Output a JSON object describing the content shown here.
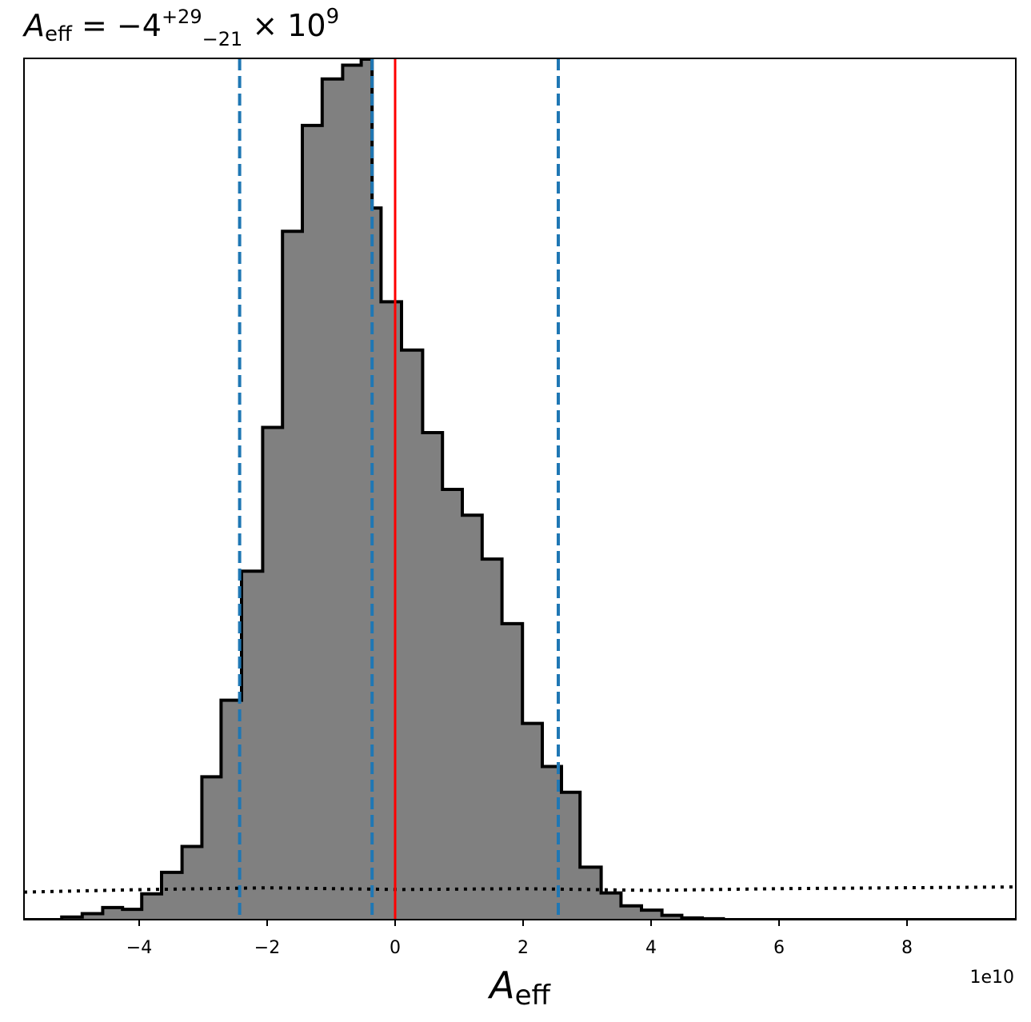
{
  "chart_data": {
    "type": "histogram",
    "title": {
      "symbol": "A",
      "symbol_sub": "eff",
      "text": " = −4",
      "sup": "+29",
      "sub": "−21",
      "times": " × 10",
      "exp": "9"
    },
    "xlabel": {
      "symbol": "A",
      "sub": "eff"
    },
    "x_offset_text": "1e10",
    "xlim": [
      -5.8,
      9.7
    ],
    "ylim": [
      0,
      1.0
    ],
    "x_ticks": [
      -4,
      -2,
      0,
      2,
      4,
      6,
      8
    ],
    "x_tick_labels": [
      "−4",
      "−2",
      "0",
      "2",
      "4",
      "6",
      "8"
    ],
    "histogram": {
      "bin_edges": [
        -5.8,
        -5.21,
        -4.89,
        -4.57,
        -4.26,
        -3.96,
        -3.65,
        -3.33,
        -3.02,
        -2.72,
        -2.4,
        -2.07,
        -1.76,
        -1.45,
        -1.14,
        -0.82,
        -0.53,
        -0.36,
        -0.22,
        0.1,
        0.43,
        0.74,
        1.05,
        1.36,
        1.67,
        1.99,
        2.3,
        2.6,
        2.89,
        3.22,
        3.53,
        3.85,
        4.17,
        4.48,
        4.8,
        5.13,
        5.45,
        6.1,
        6.7,
        9.7
      ],
      "values": [
        0.0,
        0.003,
        0.007,
        0.014,
        0.012,
        0.03,
        0.055,
        0.085,
        0.166,
        0.255,
        0.405,
        0.572,
        0.8,
        0.923,
        0.977,
        0.993,
        1.0,
        0.827,
        0.718,
        0.662,
        0.566,
        0.5,
        0.47,
        0.419,
        0.344,
        0.228,
        0.178,
        0.148,
        0.061,
        0.031,
        0.016,
        0.011,
        0.005,
        0.002,
        0.001,
        0.0,
        0.0,
        0.0,
        0.0
      ],
      "fill": "#808080",
      "edge": "#000000"
    },
    "prior_line": {
      "style": "dotted",
      "color": "#000000",
      "x": [
        -5.8,
        -3.9,
        -2.0,
        0.1,
        2.0,
        4.0,
        6.0,
        9.7
      ],
      "y": [
        0.032,
        0.035,
        0.037,
        0.035,
        0.036,
        0.034,
        0.036,
        0.038
      ]
    },
    "quantile_lines": {
      "style": "dashed",
      "color": "#1f77b4",
      "x": [
        -2.43,
        -0.36,
        2.55
      ]
    },
    "truth_line": {
      "color": "#ff0000",
      "x": 0.0
    }
  }
}
